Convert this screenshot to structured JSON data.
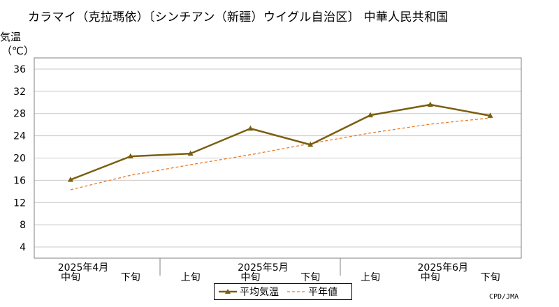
{
  "page": {
    "title": "カラマイ（克拉瑪依）〔シンチアン（新疆）ウイグル自治区〕 中華人民共和国",
    "ylabel_line1": "気温",
    "ylabel_line2": "（℃）",
    "credit": "CPD/JMA"
  },
  "colors": {
    "series_line": "#7a5f10",
    "normal_line": "#f07820",
    "grid": "#c8c8c8",
    "axis": "#808080"
  },
  "chart_data": {
    "type": "line",
    "title": "カラマイ（克拉瑪依）〔シンチアン（新疆）ウイグル自治区〕 中華人民共和国",
    "xlabel": "",
    "ylabel": "気温（℃）",
    "ylim": [
      2,
      38
    ],
    "yticks": [
      4,
      8,
      12,
      16,
      20,
      24,
      28,
      32,
      36
    ],
    "grid": true,
    "legend_position": "bottom-center",
    "categories": [
      "中旬",
      "下旬",
      "上旬",
      "中旬",
      "下旬",
      "上旬",
      "中旬",
      "下旬"
    ],
    "months": [
      {
        "label": "2025年4月",
        "center_index": 0
      },
      {
        "label": "2025年5月",
        "center_index": 3
      },
      {
        "label": "2025年6月",
        "center_index": 6
      }
    ],
    "series": [
      {
        "name": "平均気温",
        "values": [
          16.1,
          20.3,
          20.8,
          25.3,
          22.4,
          27.7,
          29.6,
          27.6
        ]
      },
      {
        "name": "平年値",
        "values": [
          14.3,
          16.9,
          18.8,
          20.6,
          22.6,
          24.5,
          26.1,
          27.2
        ]
      }
    ]
  }
}
